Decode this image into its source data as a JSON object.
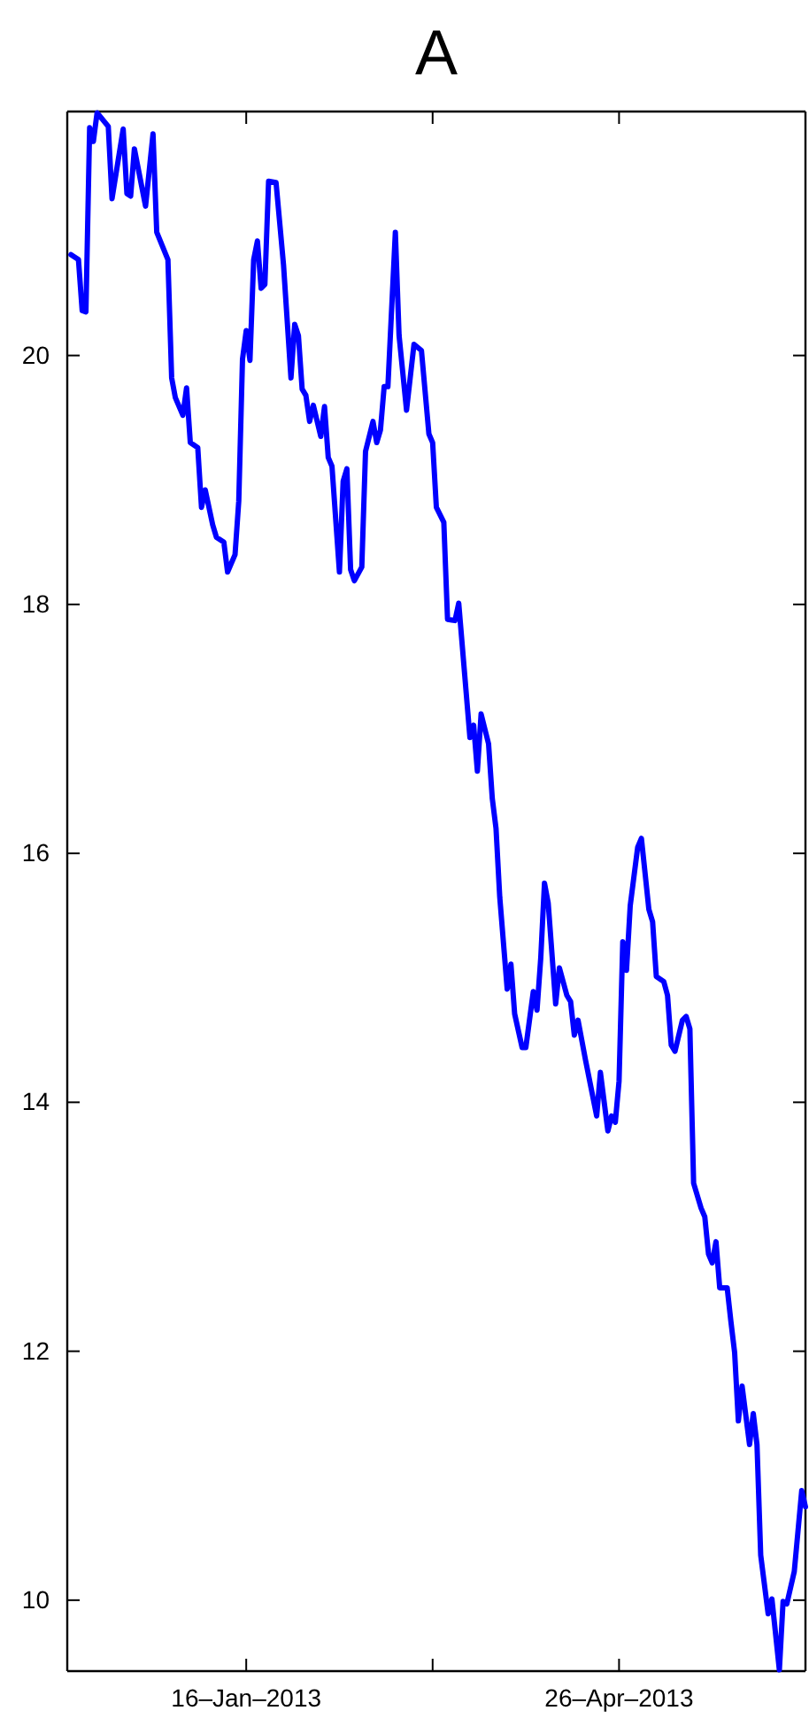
{
  "chart_data": {
    "type": "line",
    "title": "A",
    "xlim": [
      "2012-11-29",
      "2013-06-15"
    ],
    "xticks": [
      {
        "value": "2013-01-16",
        "label": "16–Jan–2013"
      },
      {
        "value": "2013-03-07",
        "label": null
      },
      {
        "value": "2013-04-26",
        "label": "26–Apr–2013"
      },
      {
        "value": "2013-06-15",
        "label": null
      }
    ],
    "ylim": [
      9.43,
      21.96
    ],
    "yticks": [
      10,
      12,
      14,
      16,
      18,
      20
    ],
    "grid": false,
    "marker": "none",
    "line_style": "solid",
    "x": [
      "2012-11-30",
      "2012-12-02",
      "2012-12-03",
      "2012-12-04",
      "2012-12-05",
      "2012-12-06",
      "2012-12-07",
      "2012-12-10",
      "2012-12-11",
      "2012-12-14",
      "2012-12-15",
      "2012-12-16",
      "2012-12-17",
      "2012-12-20",
      "2012-12-22",
      "2012-12-23",
      "2012-12-26",
      "2012-12-27",
      "2012-12-28",
      "2012-12-30",
      "2012-12-31",
      "2013-01-01",
      "2013-01-03",
      "2013-01-04",
      "2013-01-05",
      "2013-01-07",
      "2013-01-08",
      "2013-01-10",
      "2013-01-11",
      "2013-01-13",
      "2013-01-14",
      "2013-01-15",
      "2013-01-16",
      "2013-01-17",
      "2013-01-18",
      "2013-01-19",
      "2013-01-20",
      "2013-01-21",
      "2013-01-22",
      "2013-01-24",
      "2013-01-26",
      "2013-01-28",
      "2013-01-29",
      "2013-01-30",
      "2013-01-31",
      "2013-02-01",
      "2013-02-02",
      "2013-02-03",
      "2013-02-05",
      "2013-02-06",
      "2013-02-07",
      "2013-02-08",
      "2013-02-10",
      "2013-02-11",
      "2013-02-12",
      "2013-02-13",
      "2013-02-14",
      "2013-02-16",
      "2013-02-17",
      "2013-02-19",
      "2013-02-20",
      "2013-02-21",
      "2013-02-22",
      "2013-02-23",
      "2013-02-25",
      "2013-02-26",
      "2013-02-28",
      "2013-03-02",
      "2013-03-04",
      "2013-03-06",
      "2013-03-07",
      "2013-03-08",
      "2013-03-10",
      "2013-03-11",
      "2013-03-13",
      "2013-03-14",
      "2013-03-17",
      "2013-03-18",
      "2013-03-19",
      "2013-03-20",
      "2013-03-22",
      "2013-03-23",
      "2013-03-24",
      "2013-03-25",
      "2013-03-27",
      "2013-03-28",
      "2013-03-29",
      "2013-03-31",
      "2013-04-01",
      "2013-04-03",
      "2013-04-04",
      "2013-04-05",
      "2013-04-06",
      "2013-04-07",
      "2013-04-09",
      "2013-04-10",
      "2013-04-12",
      "2013-04-13",
      "2013-04-14",
      "2013-04-15",
      "2013-04-17",
      "2013-04-18",
      "2013-04-20",
      "2013-04-21",
      "2013-04-23",
      "2013-04-24",
      "2013-04-25",
      "2013-04-26",
      "2013-04-27",
      "2013-04-28",
      "2013-04-29",
      "2013-05-01",
      "2013-05-02",
      "2013-05-04",
      "2013-05-05",
      "2013-05-06",
      "2013-05-08",
      "2013-05-09",
      "2013-05-10",
      "2013-05-11",
      "2013-05-13",
      "2013-05-14",
      "2013-05-15",
      "2013-05-16",
      "2013-05-18",
      "2013-05-19",
      "2013-05-20",
      "2013-05-21",
      "2013-05-22",
      "2013-05-23",
      "2013-05-25",
      "2013-05-26",
      "2013-05-27",
      "2013-05-28",
      "2013-05-29",
      "2013-05-31",
      "2013-06-01",
      "2013-06-02",
      "2013-06-03",
      "2013-06-05",
      "2013-06-06",
      "2013-06-08",
      "2013-06-09",
      "2013-06-10",
      "2013-06-12",
      "2013-06-14",
      "2013-06-15"
    ],
    "series": [
      {
        "color": "#0000ff",
        "values": [
          20.81,
          20.77,
          20.36,
          20.35,
          21.83,
          21.72,
          21.95,
          21.84,
          21.26,
          21.82,
          21.3,
          21.28,
          21.66,
          21.2,
          21.78,
          20.99,
          20.77,
          19.82,
          19.66,
          19.52,
          19.74,
          19.3,
          19.26,
          18.78,
          18.92,
          18.64,
          18.54,
          18.5,
          18.26,
          18.4,
          18.83,
          19.97,
          20.2,
          19.96,
          20.77,
          20.92,
          20.54,
          20.57,
          21.4,
          21.39,
          20.73,
          19.82,
          20.25,
          20.16,
          19.73,
          19.68,
          19.47,
          19.6,
          19.35,
          19.59,
          19.18,
          19.11,
          18.26,
          18.99,
          19.09,
          18.28,
          18.19,
          18.3,
          19.23,
          19.47,
          19.3,
          19.4,
          19.75,
          19.75,
          20.99,
          20.16,
          19.56,
          20.09,
          20.04,
          19.37,
          19.3,
          18.78,
          18.66,
          17.88,
          17.87,
          18.01,
          16.93,
          17.03,
          16.66,
          17.12,
          16.88,
          16.44,
          16.2,
          15.65,
          14.91,
          15.11,
          14.71,
          14.44,
          14.44,
          14.89,
          14.74,
          15.16,
          15.76,
          15.6,
          14.79,
          15.08,
          14.86,
          14.81,
          14.54,
          14.66,
          14.34,
          14.19,
          13.89,
          14.24,
          13.77,
          13.89,
          13.84,
          14.17,
          15.29,
          15.06,
          15.58,
          16.05,
          16.12,
          15.55,
          15.45,
          15.01,
          14.97,
          14.86,
          14.46,
          14.41,
          14.66,
          14.69,
          14.59,
          13.35,
          13.15,
          13.08,
          12.78,
          12.71,
          12.88,
          12.51,
          12.51,
          12.24,
          11.99,
          11.44,
          11.72,
          11.25,
          11.5,
          11.25,
          10.36,
          9.89,
          10.01,
          9.44,
          9.99,
          9.97,
          10.23,
          10.88,
          10.75
        ]
      }
    ]
  }
}
